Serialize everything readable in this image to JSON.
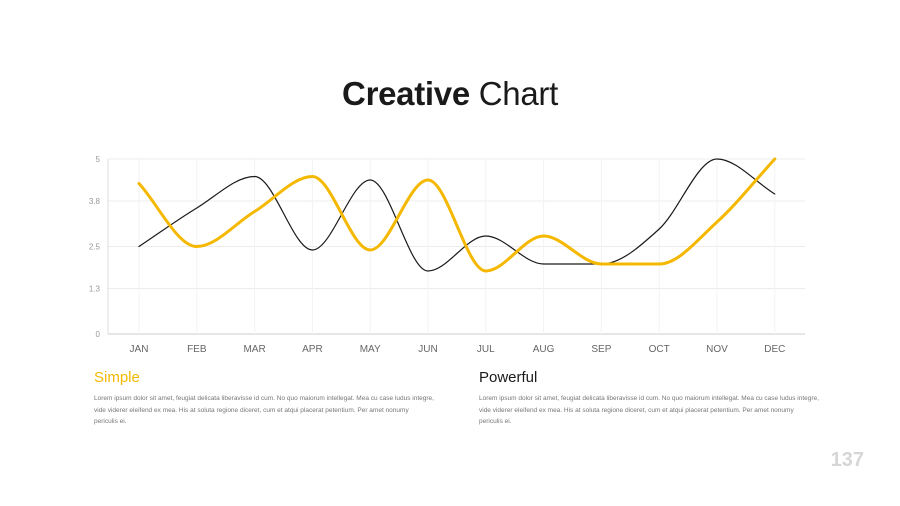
{
  "title": {
    "bold": "Creative",
    "light": "Chart"
  },
  "columns": [
    {
      "title": "Simple",
      "body": "Lorem ipsum dolor sit amet, feugiat delicata liberavisse id cum. No quo maiorum intellegat. Mea cu case ludus integre, vide viderer eleifend ex mea. His at soluta regione diceret, cum et atqui placerat petentium. Per amet nonumy periculis ei."
    },
    {
      "title": "Powerful",
      "body": "Lorem ipsum dolor sit amet, feugiat delicata liberavisse id cum. No quo maiorum intellegat. Mea cu case ludus integre, vide viderer eleifend ex mea. His at soluta regione diceret, cum et atqui placerat petentium. Per amet nonumy periculis ei."
    }
  ],
  "page_number": "137",
  "colors": {
    "accent": "#f5b800",
    "dark": "#1a1a1a",
    "grid": "#ececec",
    "tick": "#999999"
  },
  "chart_data": {
    "type": "line",
    "categories": [
      "JAN",
      "FEB",
      "MAR",
      "APR",
      "MAY",
      "JUN",
      "JUL",
      "AUG",
      "SEP",
      "OCT",
      "NOV",
      "DEC"
    ],
    "yticks": [
      "0",
      "1.3",
      "2.5",
      "3.8",
      "5"
    ],
    "ylim": [
      0,
      5
    ],
    "grid": true,
    "smooth": true,
    "series": [
      {
        "color": "#1a1a1a",
        "values": [
          2.5,
          3.6,
          4.5,
          2.4,
          4.4,
          1.8,
          2.8,
          2.0,
          2.0,
          3.0,
          5.0,
          4.0
        ]
      },
      {
        "color": "#f5b800",
        "values": [
          4.3,
          2.5,
          3.5,
          4.5,
          2.4,
          4.4,
          1.8,
          2.8,
          2.0,
          2.0,
          3.2,
          5.0
        ]
      }
    ]
  }
}
